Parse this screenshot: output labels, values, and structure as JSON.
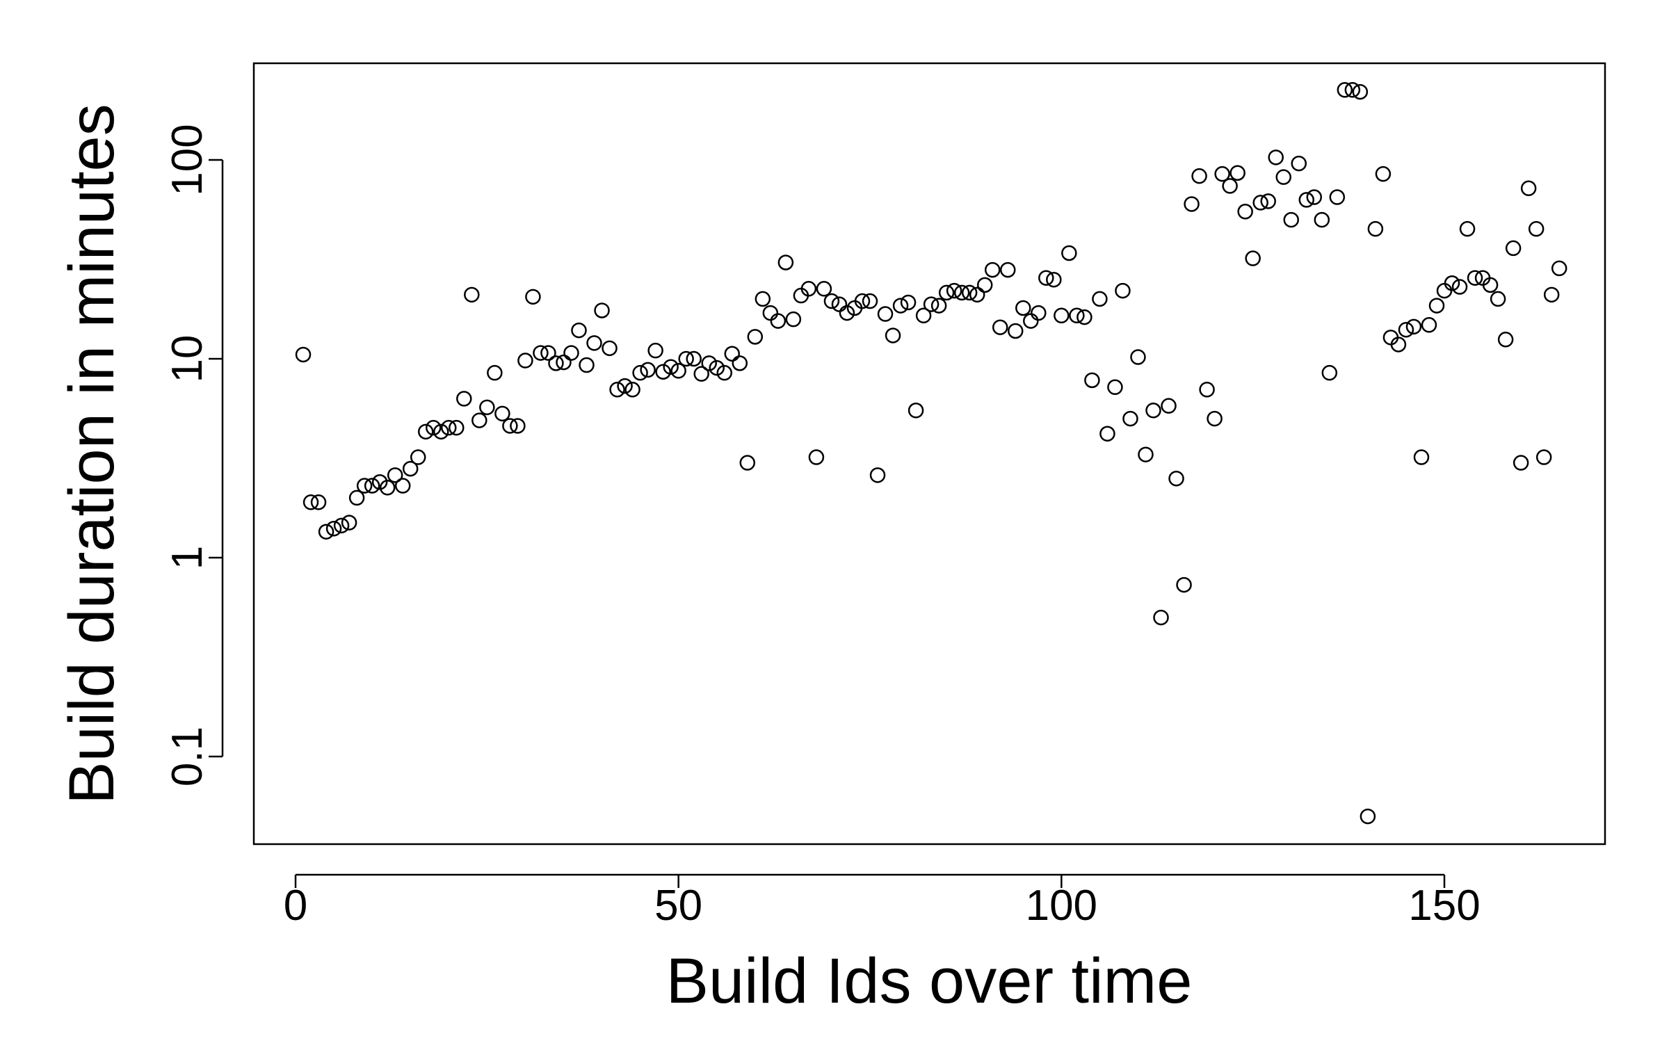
{
  "chart_data": {
    "type": "scatter",
    "title": "",
    "xlabel": "Build Ids over time",
    "ylabel": "Build duration in minutes",
    "xlim": [
      -5,
      170
    ],
    "ylim": [
      0.038,
      320
    ],
    "yscale": "log",
    "x_ticks": [
      {
        "value": 0,
        "label": "0"
      },
      {
        "value": 50,
        "label": "50"
      },
      {
        "value": 100,
        "label": "100"
      },
      {
        "value": 150,
        "label": "150"
      }
    ],
    "y_ticks": [
      {
        "value": 0.1,
        "label": "0.1"
      },
      {
        "value": 1,
        "label": "1"
      },
      {
        "value": 10,
        "label": "10"
      },
      {
        "value": 100,
        "label": "100"
      }
    ],
    "grid": false,
    "legend": "none",
    "marker": "open-circle",
    "point_color": "#000000",
    "x": [
      1,
      2,
      3,
      4,
      5,
      6,
      7,
      8,
      9,
      10,
      11,
      12,
      13,
      14,
      15,
      16,
      17,
      18,
      19,
      20,
      21,
      22,
      23,
      24,
      25,
      26,
      27,
      28,
      29,
      30,
      31,
      32,
      33,
      34,
      35,
      36,
      37,
      38,
      39,
      40,
      41,
      42,
      43,
      44,
      45,
      46,
      47,
      48,
      49,
      50,
      51,
      52,
      53,
      54,
      55,
      56,
      57,
      58,
      59,
      60,
      61,
      62,
      63,
      64,
      65,
      66,
      67,
      68,
      69,
      70,
      71,
      72,
      73,
      74,
      75,
      76,
      77,
      78,
      79,
      80,
      81,
      82,
      83,
      84,
      85,
      86,
      87,
      88,
      89,
      90,
      91,
      92,
      93,
      94,
      95,
      96,
      97,
      98,
      99,
      100,
      101,
      102,
      103,
      104,
      105,
      106,
      107,
      108,
      109,
      110,
      111,
      112,
      113,
      114,
      115,
      116,
      117,
      118,
      119,
      120,
      121,
      122,
      123,
      124,
      125,
      126,
      127,
      128,
      129,
      130,
      131,
      132,
      133,
      134,
      135,
      136,
      137,
      138,
      139,
      140,
      141,
      142,
      143,
      144,
      145,
      146,
      147,
      148,
      149,
      150,
      151,
      152,
      153,
      154,
      155,
      156,
      157,
      158,
      159,
      160,
      161,
      162,
      163,
      164,
      165
    ],
    "y": [
      10.5,
      1.9,
      1.9,
      1.35,
      1.4,
      1.45,
      1.5,
      2.0,
      2.3,
      2.3,
      2.4,
      2.25,
      2.6,
      2.3,
      2.8,
      3.2,
      4.3,
      4.5,
      4.3,
      4.5,
      4.5,
      6.3,
      21,
      4.9,
      5.7,
      8.5,
      5.3,
      4.6,
      4.6,
      9.8,
      20.5,
      10.7,
      10.7,
      9.5,
      9.6,
      10.7,
      13.9,
      9.3,
      12,
      17.5,
      11.3,
      7,
      7.3,
      7,
      8.5,
      8.8,
      11,
      8.6,
      9.1,
      8.7,
      10,
      10,
      8.4,
      9.5,
      9,
      8.5,
      10.6,
      9.5,
      3,
      12.9,
      20,
      17,
      15.5,
      30.5,
      15.8,
      20.8,
      22.5,
      3.2,
      22.5,
      19.5,
      18.8,
      17,
      18,
      19.5,
      19.5,
      2.6,
      16.8,
      13.1,
      18.5,
      19.2,
      5.5,
      16.5,
      18.8,
      18.5,
      21.5,
      22,
      21.5,
      21.5,
      21,
      23.5,
      28,
      14.4,
      28,
      13.8,
      18,
      15.5,
      17,
      25.5,
      25,
      16.5,
      34,
      16.5,
      16.2,
      7.8,
      20,
      4.2,
      7.2,
      22,
      5,
      10.2,
      3.3,
      5.5,
      0.5,
      5.8,
      2.5,
      0.73,
      60,
      83,
      7,
      5,
      85,
      74,
      86,
      55,
      32,
      61,
      62,
      103,
      82,
      50,
      96,
      63,
      65,
      50,
      8.5,
      65,
      225,
      225,
      220,
      0.05,
      45,
      85,
      12.8,
      11.8,
      14,
      14.5,
      3.2,
      14.8,
      18.5,
      22,
      24,
      23,
      45,
      25.5,
      25.5,
      23.5,
      20,
      12.5,
      36,
      3,
      72,
      45,
      3.2,
      21,
      28.5
    ]
  }
}
